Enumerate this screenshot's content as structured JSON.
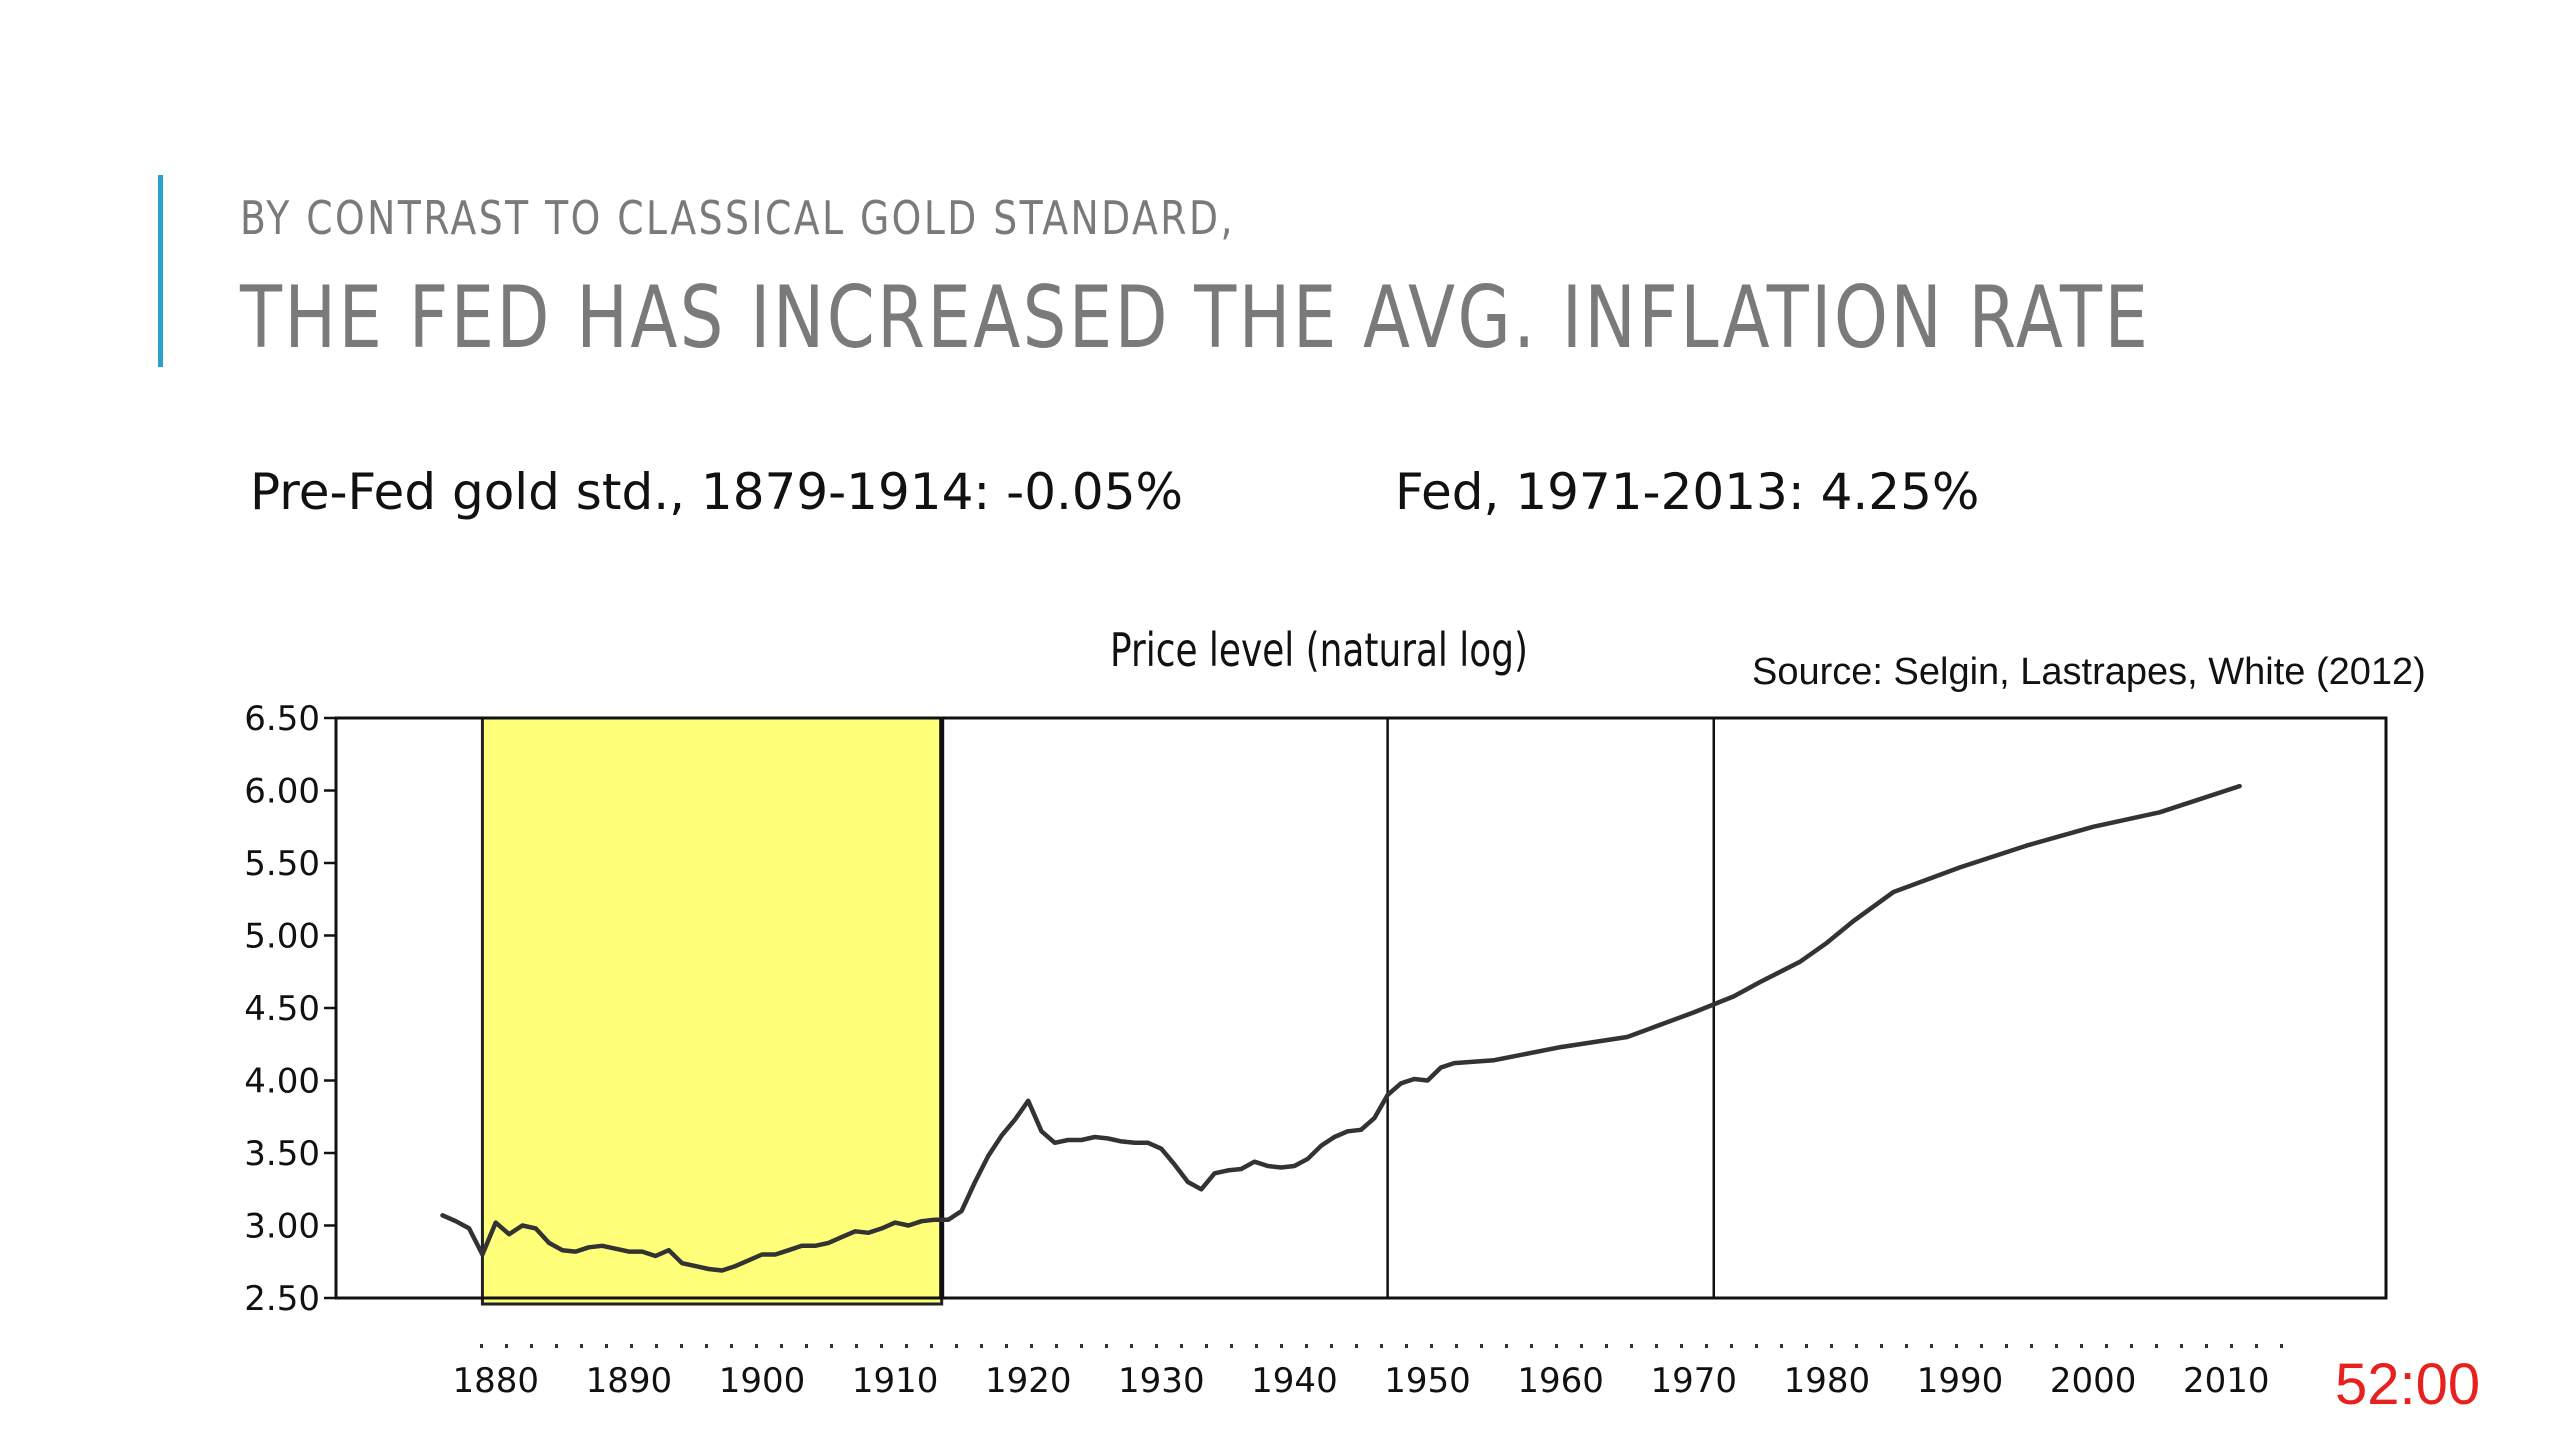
{
  "slide": {
    "subtitle": "BY CONTRAST TO CLASSICAL GOLD STANDARD,",
    "title": "THE FED HAS INCREASED THE AVG. INFLATION RATE",
    "stat_left": "Pre-Fed gold std., 1879-1914: -0.05%",
    "stat_right": "Fed, 1971-2013: 4.25%",
    "timer": "52:00",
    "accent_color": "#2aa0cf",
    "timer_color": "#e8201e"
  },
  "chart_data": {
    "type": "line",
    "title": "Price level (natural log)",
    "source": "Source: Selgin, Lastrapes, White (2012)",
    "ylim": [
      2.5,
      6.5
    ],
    "xlim": [
      1868,
      2022
    ],
    "y_ticks": [
      "6.50",
      "6.00",
      "5.50",
      "5.00",
      "4.50",
      "4.00",
      "3.50",
      "3.00",
      "2.50"
    ],
    "x_ticks": [
      1880,
      1890,
      1900,
      1910,
      1920,
      1930,
      1940,
      1950,
      1960,
      1970,
      1980,
      1990,
      2000,
      2010
    ],
    "highlight": {
      "from": 1879,
      "to": 1913.5,
      "color": "#ffff7a"
    },
    "vertical_lines": [
      1913.5,
      1947,
      1971.5
    ],
    "grid": false,
    "series": [
      {
        "x": [
          1876,
          1877,
          1878,
          1879,
          1880,
          1881,
          1882,
          1883,
          1884,
          1885,
          1886,
          1887,
          1888,
          1889,
          1890,
          1891,
          1892,
          1893,
          1894,
          1895,
          1896,
          1897,
          1898,
          1899,
          1900,
          1901,
          1902,
          1903,
          1904,
          1905,
          1906,
          1907,
          1908,
          1909,
          1910,
          1911,
          1912,
          1913,
          1914,
          1915,
          1916,
          1917,
          1918,
          1919,
          1920,
          1921,
          1922,
          1923,
          1924,
          1925,
          1926,
          1927,
          1928,
          1929,
          1930,
          1931,
          1932,
          1933,
          1934,
          1935,
          1936,
          1937,
          1938,
          1939,
          1940,
          1941,
          1942,
          1943,
          1944,
          1945,
          1946,
          1947,
          1948,
          1949,
          1950,
          1951,
          1952,
          1955,
          1960,
          1965,
          1970,
          1973,
          1975,
          1978,
          1980,
          1982,
          1985,
          1990,
          1995,
          2000,
          2005,
          2010,
          2011
        ],
        "y": [
          3.07,
          3.03,
          2.98,
          2.8,
          3.02,
          2.94,
          3.0,
          2.98,
          2.88,
          2.83,
          2.82,
          2.85,
          2.86,
          2.84,
          2.82,
          2.82,
          2.79,
          2.83,
          2.74,
          2.72,
          2.7,
          2.69,
          2.72,
          2.76,
          2.8,
          2.8,
          2.83,
          2.86,
          2.86,
          2.88,
          2.92,
          2.96,
          2.95,
          2.98,
          3.02,
          3.0,
          3.03,
          3.04,
          3.04,
          3.1,
          3.3,
          3.48,
          3.62,
          3.73,
          3.86,
          3.65,
          3.57,
          3.59,
          3.59,
          3.61,
          3.6,
          3.58,
          3.57,
          3.57,
          3.53,
          3.42,
          3.3,
          3.25,
          3.36,
          3.38,
          3.39,
          3.44,
          3.41,
          3.4,
          3.41,
          3.46,
          3.55,
          3.61,
          3.65,
          3.66,
          3.74,
          3.9,
          3.98,
          4.01,
          4.0,
          4.09,
          4.12,
          4.14,
          4.23,
          4.3,
          4.47,
          4.58,
          4.68,
          4.82,
          4.95,
          5.1,
          5.3,
          5.47,
          5.62,
          5.75,
          5.85,
          6.0,
          6.03
        ]
      }
    ]
  }
}
